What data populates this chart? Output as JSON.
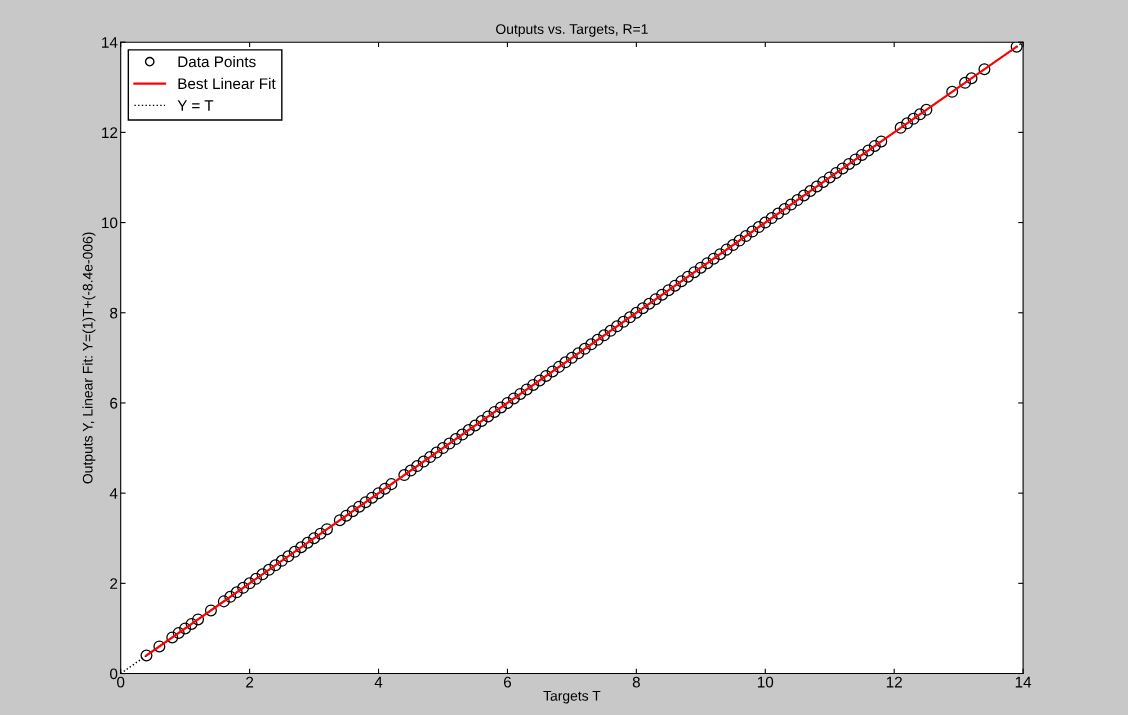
{
  "chart_data": {
    "type": "scatter",
    "title": "Outputs vs. Targets, R=1",
    "xlabel": "Targets T",
    "ylabel": "Outputs Y, Linear Fit: Y=(1)T+(-8.4e-006)",
    "xlim": [
      0,
      14
    ],
    "ylim": [
      0,
      14
    ],
    "xticks": [
      0,
      2,
      4,
      6,
      8,
      10,
      12,
      14
    ],
    "yticks": [
      0,
      2,
      4,
      6,
      8,
      10,
      12,
      14
    ],
    "grid": false,
    "legend": "top left",
    "series": [
      {
        "name": "Data Points",
        "marker": "circle",
        "color": "#000000",
        "x": [
          0.4,
          0.6,
          0.8,
          0.9,
          1.0,
          1.1,
          1.2,
          1.4,
          1.6,
          1.7,
          1.8,
          1.9,
          2.0,
          2.1,
          2.2,
          2.3,
          2.4,
          2.5,
          2.6,
          2.7,
          2.8,
          2.9,
          3.0,
          3.1,
          3.2,
          3.4,
          3.5,
          3.6,
          3.7,
          3.8,
          3.9,
          4.0,
          4.1,
          4.2,
          4.4,
          4.5,
          4.6,
          4.7,
          4.8,
          4.9,
          5.0,
          5.1,
          5.2,
          5.3,
          5.4,
          5.5,
          5.6,
          5.7,
          5.8,
          5.9,
          6.0,
          6.1,
          6.2,
          6.3,
          6.4,
          6.5,
          6.6,
          6.7,
          6.8,
          6.9,
          7.0,
          7.1,
          7.2,
          7.3,
          7.4,
          7.5,
          7.6,
          7.7,
          7.8,
          7.9,
          8.0,
          8.1,
          8.2,
          8.3,
          8.4,
          8.5,
          8.6,
          8.7,
          8.8,
          8.9,
          9.0,
          9.1,
          9.2,
          9.3,
          9.4,
          9.5,
          9.6,
          9.7,
          9.8,
          9.9,
          10.0,
          10.1,
          10.2,
          10.3,
          10.4,
          10.5,
          10.6,
          10.7,
          10.8,
          10.9,
          11.0,
          11.1,
          11.2,
          11.3,
          11.4,
          11.5,
          11.6,
          11.7,
          11.8,
          12.1,
          12.2,
          12.3,
          12.4,
          12.5,
          12.9,
          13.1,
          13.2,
          13.4,
          13.9
        ],
        "values": [
          0.4,
          0.6,
          0.8,
          0.9,
          1.0,
          1.1,
          1.2,
          1.4,
          1.6,
          1.7,
          1.8,
          1.9,
          2.0,
          2.1,
          2.2,
          2.3,
          2.4,
          2.5,
          2.6,
          2.7,
          2.8,
          2.9,
          3.0,
          3.1,
          3.2,
          3.4,
          3.5,
          3.6,
          3.7,
          3.8,
          3.9,
          4.0,
          4.1,
          4.2,
          4.4,
          4.5,
          4.6,
          4.7,
          4.8,
          4.9,
          5.0,
          5.1,
          5.2,
          5.3,
          5.4,
          5.5,
          5.6,
          5.7,
          5.8,
          5.9,
          6.0,
          6.1,
          6.2,
          6.3,
          6.4,
          6.5,
          6.6,
          6.7,
          6.8,
          6.9,
          7.0,
          7.1,
          7.2,
          7.3,
          7.4,
          7.5,
          7.6,
          7.7,
          7.8,
          7.9,
          8.0,
          8.1,
          8.2,
          8.3,
          8.4,
          8.5,
          8.6,
          8.7,
          8.8,
          8.9,
          9.0,
          9.1,
          9.2,
          9.3,
          9.4,
          9.5,
          9.6,
          9.7,
          9.8,
          9.9,
          10.0,
          10.1,
          10.2,
          10.3,
          10.4,
          10.5,
          10.6,
          10.7,
          10.8,
          10.9,
          11.0,
          11.1,
          11.2,
          11.3,
          11.4,
          11.5,
          11.6,
          11.7,
          11.8,
          12.1,
          12.2,
          12.3,
          12.4,
          12.5,
          12.9,
          13.1,
          13.2,
          13.4,
          13.9
        ]
      },
      {
        "name": "Best Linear Fit",
        "type": "line",
        "line_style": "solid",
        "color": "#ff0000",
        "x": [
          0.4,
          13.9
        ],
        "values": [
          0.4,
          13.9
        ]
      },
      {
        "name": "Y = T",
        "type": "line",
        "line_style": "dotted",
        "color": "#000000",
        "x": [
          0,
          14
        ],
        "values": [
          0,
          14
        ]
      }
    ]
  }
}
